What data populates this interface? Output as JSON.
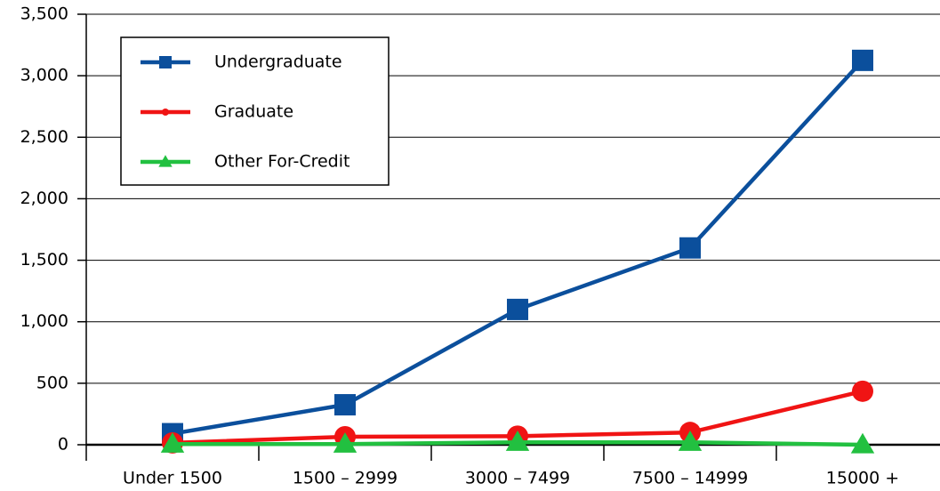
{
  "chart_data": {
    "type": "line",
    "categories": [
      "Under 1500",
      "1500 – 2999",
      "3000 – 7499",
      "7500 – 14999",
      "15000 +"
    ],
    "series": [
      {
        "name": "Undergraduate",
        "color": "#0b4f9c",
        "marker": "square",
        "values": [
          90,
          325,
          1100,
          1600,
          3125
        ]
      },
      {
        "name": "Graduate",
        "color": "#f01414",
        "marker": "circle",
        "values": [
          15,
          65,
          70,
          100,
          435
        ]
      },
      {
        "name": "Other For-Credit",
        "color": "#22c040",
        "marker": "triangle",
        "values": [
          5,
          5,
          20,
          20,
          0
        ]
      }
    ],
    "ylim": [
      0,
      3500
    ],
    "yticks": [
      0,
      500,
      {
        "value": 1000,
        "label": "1,000"
      },
      {
        "value": 1500,
        "label": "1,500"
      },
      {
        "value": 2000,
        "label": "2,000"
      },
      {
        "value": 2500,
        "label": "2,500"
      },
      {
        "value": 3000,
        "label": "3,000"
      },
      {
        "value": 3500,
        "label": "3,500"
      }
    ],
    "grid": true,
    "legend": "upper left"
  }
}
